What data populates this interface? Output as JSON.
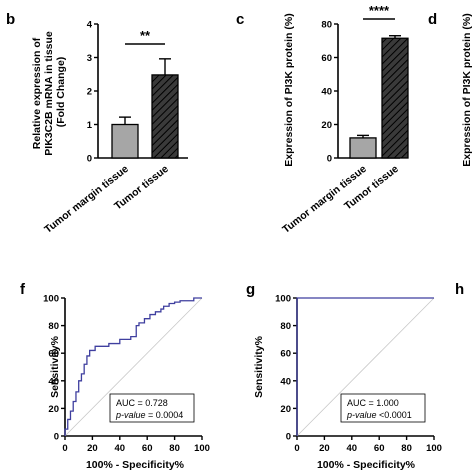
{
  "chart_data": [
    {
      "panel": "b",
      "type": "bar",
      "ylabel": [
        "Relative expression of",
        "PIK3C2B mRNA in tissue",
        "(Fold Change)"
      ],
      "categories": [
        "Tumor margin tissue",
        "Tumor tissue"
      ],
      "values": [
        1.0,
        2.48
      ],
      "error": [
        0.22,
        0.48
      ],
      "ylim": [
        0,
        4
      ],
      "yticks": [
        "0",
        "1",
        "2",
        "3",
        "4"
      ],
      "significance": "**",
      "colors": [
        "#a6a6a6",
        "#3a3a3a"
      ]
    },
    {
      "panel": "c",
      "type": "bar",
      "ylabel": [
        "Expression of PI3K protein (%)"
      ],
      "categories": [
        "Tumor margin tissue",
        "Tumor tissue"
      ],
      "values": [
        12,
        71.5
      ],
      "error": [
        1.5,
        1.5
      ],
      "ylim": [
        0,
        80
      ],
      "yticks": [
        "0",
        "20",
        "40",
        "60",
        "80"
      ],
      "significance": "****",
      "colors": [
        "#a6a6a6",
        "#3a3a3a"
      ]
    },
    {
      "panel": "d",
      "type": "bar",
      "ylabel": [
        "Expression of PI3K protein (%)"
      ]
    },
    {
      "panel": "f",
      "type": "line",
      "xlabel": "100% - Specificity%",
      "ylabel": "Sensitivity%",
      "xlim": [
        0,
        100
      ],
      "ylim": [
        0,
        100
      ],
      "ticks": [
        "0",
        "20",
        "40",
        "60",
        "80",
        "100"
      ],
      "x": [
        0,
        0,
        2,
        2,
        4,
        4,
        6,
        6,
        8,
        8,
        10,
        10,
        12,
        12,
        14,
        14,
        16,
        16,
        18,
        18,
        22,
        22,
        26,
        26,
        32,
        32,
        40,
        40,
        48,
        48,
        52,
        52,
        54,
        54,
        58,
        58,
        62,
        62,
        66,
        66,
        70,
        70,
        72,
        72,
        76,
        76,
        80,
        80,
        84,
        84,
        94,
        94,
        100
      ],
      "y": [
        0,
        5,
        5,
        12,
        12,
        18,
        18,
        25,
        25,
        32,
        32,
        40,
        40,
        45,
        45,
        52,
        52,
        58,
        58,
        62,
        62,
        65,
        65,
        65,
        65,
        67,
        67,
        70,
        70,
        72,
        72,
        80,
        80,
        82,
        82,
        85,
        85,
        88,
        88,
        90,
        90,
        92,
        92,
        94,
        94,
        96,
        96,
        97,
        97,
        98,
        98,
        100,
        100
      ],
      "auc": "AUC = 0.728",
      "p_label": "p-value",
      "p_value": "= 0.0004",
      "line_color": "#3f3f9f"
    },
    {
      "panel": "g",
      "type": "line",
      "xlabel": "100% - Specificity%",
      "ylabel": "Sensitivity%",
      "xlim": [
        0,
        100
      ],
      "ylim": [
        0,
        100
      ],
      "ticks": [
        "0",
        "20",
        "40",
        "60",
        "80",
        "100"
      ],
      "x": [
        0,
        0,
        100
      ],
      "y": [
        0,
        100,
        100
      ],
      "auc": "AUC = 1.000",
      "p_label": "p-value",
      "p_value": "<0.0001",
      "line_color": "#3f3f9f"
    },
    {
      "panel": "h"
    }
  ]
}
